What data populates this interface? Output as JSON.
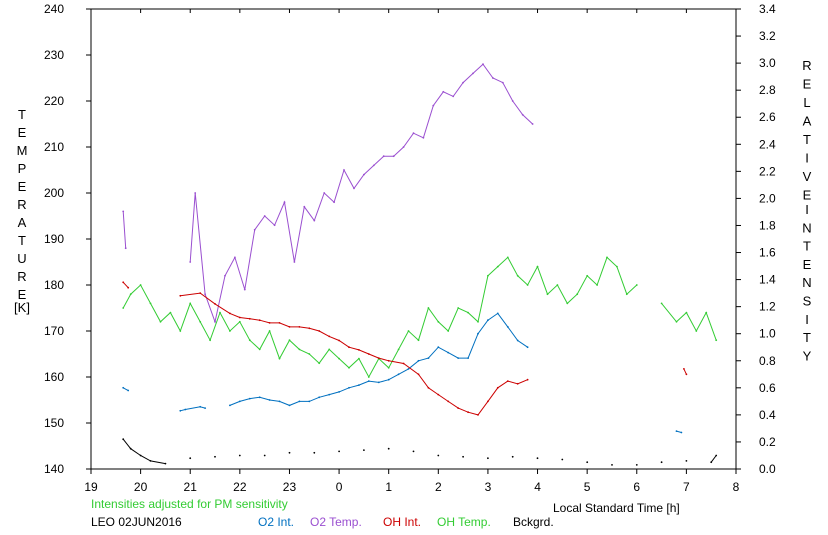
{
  "chart_data": {
    "type": "line",
    "x_ticks": [
      "19",
      "20",
      "21",
      "22",
      "23",
      "0",
      "1",
      "2",
      "3",
      "4",
      "5",
      "6",
      "7",
      "8"
    ],
    "xlabel": "Local Standard Time [h]",
    "y_left": {
      "label_letters": [
        "T",
        "E",
        "M",
        "P",
        "E",
        "R",
        "A",
        "T",
        "U",
        "R",
        "E"
      ],
      "unit": "[K]",
      "range": [
        140,
        240
      ],
      "ticks": [
        "140",
        "150",
        "160",
        "170",
        "180",
        "190",
        "200",
        "210",
        "220",
        "230",
        "240"
      ]
    },
    "y_right": {
      "label_letters_1": [
        "R",
        "E",
        "L",
        "A",
        "T",
        "I",
        "V",
        "E"
      ],
      "label_letters_2": [
        "I",
        "N",
        "T",
        "E",
        "N",
        "S",
        "I",
        "T",
        "Y"
      ],
      "range": [
        0.0,
        3.4
      ],
      "ticks": [
        "0.0",
        "0.2",
        "0.4",
        "0.6",
        "0.8",
        "1.0",
        "1.2",
        "1.4",
        "1.6",
        "1.8",
        "2.0",
        "2.2",
        "2.4",
        "2.6",
        "2.8",
        "3.0",
        "3.2",
        "3.4"
      ]
    },
    "footer": {
      "note": "Intensities adjusted for PM sensitivity",
      "station_date": "LEO 02JUN2016"
    },
    "legend": [
      {
        "label": "O2 Int.",
        "color": "#0070c0"
      },
      {
        "label": "O2 Temp.",
        "color": "#9a4fd0"
      },
      {
        "label": "OH Int.",
        "color": "#cc0000"
      },
      {
        "label": "OH Temp.",
        "color": "#33cc33"
      },
      {
        "label": "Bckgrd.",
        "color": "#000000"
      }
    ],
    "series": [
      {
        "name": "O2 Temp.",
        "axis": "left",
        "color": "#9a4fd0",
        "x_hours": [
          19.65,
          19.7,
          21.0,
          21.1,
          21.3,
          21.5,
          21.7,
          21.9,
          22.1,
          22.3,
          22.5,
          22.7,
          22.9,
          23.1,
          23.3,
          23.5,
          23.7,
          23.9,
          24.1,
          24.3,
          24.5,
          24.7,
          24.9,
          25.1,
          25.3,
          25.5,
          25.7,
          25.9,
          26.1,
          26.3,
          26.5,
          26.7,
          26.9,
          27.1,
          27.3,
          27.5,
          27.7,
          27.9
        ],
        "y": [
          196,
          188,
          185,
          200,
          178,
          172,
          182,
          186,
          179,
          192,
          195,
          193,
          198,
          185,
          197,
          194,
          200,
          198,
          205,
          201,
          204,
          206,
          208,
          208,
          210,
          213,
          212,
          219,
          222,
          221,
          224,
          226,
          228,
          225,
          224,
          220,
          217,
          215
        ]
      },
      {
        "name": "OH Temp.",
        "axis": "left",
        "color": "#33cc33",
        "x_hours": [
          19.65,
          19.8,
          20.0,
          20.2,
          20.4,
          20.6,
          20.8,
          21.0,
          21.2,
          21.4,
          21.6,
          21.8,
          22.0,
          22.2,
          22.4,
          22.6,
          22.8,
          23.0,
          23.2,
          23.4,
          23.6,
          23.8,
          24.0,
          24.2,
          24.4,
          24.6,
          24.8,
          25.0,
          25.2,
          25.4,
          25.6,
          25.8,
          26.0,
          26.2,
          26.4,
          26.6,
          26.8,
          27.0,
          27.2,
          27.4,
          27.6,
          27.8,
          28.0,
          28.2,
          28.4,
          28.6,
          28.8,
          29.0,
          29.2,
          29.4,
          29.6,
          29.8,
          30.0,
          30.5,
          30.8,
          31.0,
          31.2,
          31.4,
          31.6
        ],
        "y": [
          175,
          178,
          180,
          176,
          172,
          174,
          170,
          176,
          172,
          168,
          174,
          170,
          172,
          168,
          166,
          170,
          164,
          168,
          166,
          165,
          163,
          166,
          164,
          162,
          164,
          160,
          164,
          162,
          166,
          170,
          168,
          175,
          172,
          170,
          175,
          174,
          172,
          182,
          184,
          186,
          182,
          180,
          184,
          178,
          180,
          176,
          178,
          182,
          180,
          186,
          184,
          178,
          180,
          176,
          172,
          174,
          170,
          174,
          168
        ]
      },
      {
        "name": "O2 Int.",
        "axis": "right",
        "color": "#0070c0",
        "x_hours": [
          19.65,
          19.75,
          20.8,
          20.9,
          21.2,
          21.3,
          21.8,
          22.0,
          22.2,
          22.4,
          22.6,
          22.8,
          23.0,
          23.2,
          23.4,
          23.6,
          23.8,
          24.0,
          24.2,
          24.4,
          24.6,
          24.8,
          25.0,
          25.2,
          25.4,
          25.6,
          25.8,
          26.0,
          26.2,
          26.4,
          26.6,
          26.8,
          27.0,
          27.2,
          27.4,
          27.6,
          27.8,
          30.8,
          30.9
        ],
        "y": [
          0.6,
          0.58,
          0.43,
          0.44,
          0.46,
          0.45,
          0.47,
          0.5,
          0.52,
          0.53,
          0.51,
          0.5,
          0.47,
          0.5,
          0.5,
          0.53,
          0.55,
          0.57,
          0.6,
          0.62,
          0.65,
          0.64,
          0.66,
          0.7,
          0.74,
          0.8,
          0.82,
          0.9,
          0.86,
          0.82,
          0.82,
          1.0,
          1.1,
          1.15,
          1.05,
          0.95,
          0.9,
          0.28,
          0.27
        ]
      },
      {
        "name": "OH Int.",
        "axis": "right",
        "color": "#cc0000",
        "x_hours": [
          19.65,
          19.75,
          20.8,
          21.2,
          21.5,
          21.8,
          22.0,
          22.2,
          22.4,
          22.6,
          22.8,
          23.0,
          23.2,
          23.4,
          23.6,
          23.8,
          24.0,
          24.2,
          24.4,
          24.6,
          24.8,
          25.0,
          25.3,
          25.6,
          25.8,
          26.0,
          26.2,
          26.4,
          26.6,
          26.8,
          27.0,
          27.2,
          27.4,
          27.6,
          27.8,
          30.95,
          31.0
        ],
        "y": [
          1.38,
          1.34,
          1.28,
          1.3,
          1.22,
          1.15,
          1.12,
          1.11,
          1.1,
          1.08,
          1.08,
          1.05,
          1.05,
          1.04,
          1.02,
          0.98,
          0.95,
          0.9,
          0.88,
          0.85,
          0.82,
          0.8,
          0.78,
          0.7,
          0.6,
          0.55,
          0.5,
          0.45,
          0.42,
          0.4,
          0.5,
          0.6,
          0.65,
          0.63,
          0.66,
          0.74,
          0.7
        ]
      },
      {
        "name": "Bckgrd.",
        "axis": "right",
        "color": "#000000",
        "x_hours": [
          19.65,
          19.8,
          20.0,
          20.2,
          20.5,
          21.0,
          21.5,
          22.0,
          22.5,
          23.0,
          23.5,
          24.0,
          24.5,
          25.0,
          25.5,
          26.0,
          26.5,
          27.0,
          27.5,
          28.0,
          28.5,
          29.0,
          29.5,
          30.0,
          30.5,
          31.0,
          31.5,
          31.6
        ],
        "y": [
          0.22,
          0.15,
          0.1,
          0.06,
          0.04,
          0.08,
          0.09,
          0.1,
          0.1,
          0.12,
          0.12,
          0.13,
          0.14,
          0.15,
          0.13,
          0.1,
          0.09,
          0.08,
          0.09,
          0.08,
          0.07,
          0.05,
          0.03,
          0.03,
          0.05,
          0.06,
          0.05,
          0.1
        ]
      }
    ]
  }
}
